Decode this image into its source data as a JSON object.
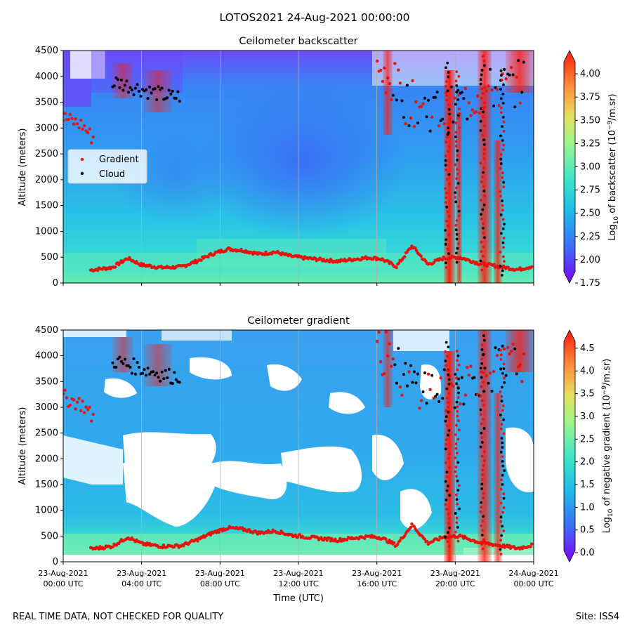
{
  "figure": {
    "title": "LOTOS2021 24-Aug-2021 00:00:00",
    "footer_left": "REAL TIME DATA, NOT CHECKED FOR QUALITY",
    "footer_right": "Site: ISS4"
  },
  "legend": {
    "items": [
      {
        "label": "Gradient",
        "color": "#e8130e"
      },
      {
        "label": "Cloud",
        "color": "#000000"
      }
    ]
  },
  "chart_data": [
    {
      "type": "heatmap",
      "title": "Ceilometer backscatter",
      "ylabel": "Altitude (meters)",
      "xlabel": "",
      "ylim": [
        0,
        4500
      ],
      "yticks": [
        0,
        500,
        1000,
        1500,
        2000,
        2500,
        3000,
        3500,
        4000,
        4500
      ],
      "xlim_hours": [
        0,
        24
      ],
      "colorbar": {
        "label_prefix": "Log",
        "label_sub": "10",
        "label_mid": " of backscatter (10",
        "label_sup": "−9",
        "label_suffix": "/m.sr)",
        "range": [
          1.75,
          4.25
        ],
        "ticks": [
          "1.75",
          "2.00",
          "2.25",
          "2.50",
          "2.75",
          "3.00",
          "3.25",
          "3.50",
          "3.75",
          "4.00"
        ]
      },
      "cloud_base_profile": [
        {
          "t": 0.0,
          "alt": 3200
        },
        {
          "t": 1.0,
          "alt": 3050
        },
        {
          "t": 1.5,
          "alt": 2800
        },
        {
          "t": 2.6,
          "alt": 3900
        },
        {
          "t": 4.5,
          "alt": 3700
        },
        {
          "t": 5.5,
          "alt": 3600
        },
        {
          "t": 16.5,
          "alt": 4050
        },
        {
          "t": 17.5,
          "alt": 3500
        },
        {
          "t": 19.5,
          "alt": 3300
        },
        {
          "t": 21.5,
          "alt": 3700
        },
        {
          "t": 23.5,
          "alt": 3900
        }
      ]
    },
    {
      "type": "heatmap",
      "title": "Ceilometer gradient",
      "ylabel": "Altitude (meters)",
      "xlabel": "Time (UTC)",
      "ylim": [
        0,
        4500
      ],
      "yticks": [
        0,
        500,
        1000,
        1500,
        2000,
        2500,
        3000,
        3500,
        4000,
        4500
      ],
      "xlim_hours": [
        0,
        24
      ],
      "colorbar": {
        "label_prefix": "Log",
        "label_sub": "10",
        "label_mid": " of negative gradient (10",
        "label_sup": "−9",
        "label_suffix": "/m.sr)",
        "range": [
          -0.2,
          4.9
        ],
        "ticks": [
          "0.0",
          "0.5",
          "1.0",
          "1.5",
          "2.0",
          "2.5",
          "3.0",
          "3.5",
          "4.0",
          "4.5"
        ]
      }
    }
  ],
  "time_axis": {
    "ticks": [
      {
        "hour": 0,
        "date": "23-Aug-2021",
        "time": "00:00 UTC"
      },
      {
        "hour": 4,
        "date": "23-Aug-2021",
        "time": "04:00 UTC"
      },
      {
        "hour": 8,
        "date": "23-Aug-2021",
        "time": "08:00 UTC"
      },
      {
        "hour": 12,
        "date": "23-Aug-2021",
        "time": "12:00 UTC"
      },
      {
        "hour": 16,
        "date": "23-Aug-2021",
        "time": "16:00 UTC"
      },
      {
        "hour": 20,
        "date": "23-Aug-2021",
        "time": "20:00 UTC"
      },
      {
        "hour": 24,
        "date": "24-Aug-2021",
        "time": "00:00 UTC"
      }
    ]
  },
  "gradient_layer": [
    {
      "t": 1.4,
      "alt": 250
    },
    {
      "t": 2.5,
      "alt": 300
    },
    {
      "t": 3.3,
      "alt": 480
    },
    {
      "t": 4.0,
      "alt": 350
    },
    {
      "t": 5.0,
      "alt": 300
    },
    {
      "t": 6.0,
      "alt": 310
    },
    {
      "t": 6.8,
      "alt": 420
    },
    {
      "t": 7.6,
      "alt": 560
    },
    {
      "t": 8.4,
      "alt": 660
    },
    {
      "t": 9.2,
      "alt": 630
    },
    {
      "t": 10.0,
      "alt": 560
    },
    {
      "t": 10.8,
      "alt": 600
    },
    {
      "t": 11.6,
      "alt": 520
    },
    {
      "t": 12.4,
      "alt": 480
    },
    {
      "t": 13.2,
      "alt": 450
    },
    {
      "t": 14.0,
      "alt": 420
    },
    {
      "t": 14.8,
      "alt": 460
    },
    {
      "t": 15.6,
      "alt": 490
    },
    {
      "t": 16.2,
      "alt": 470
    },
    {
      "t": 17.0,
      "alt": 320
    },
    {
      "t": 17.8,
      "alt": 720
    },
    {
      "t": 18.6,
      "alt": 360
    },
    {
      "t": 19.4,
      "alt": 480
    },
    {
      "t": 20.2,
      "alt": 500
    },
    {
      "t": 21.2,
      "alt": 380
    },
    {
      "t": 22.2,
      "alt": 320
    },
    {
      "t": 23.2,
      "alt": 260
    },
    {
      "t": 23.9,
      "alt": 320
    }
  ]
}
